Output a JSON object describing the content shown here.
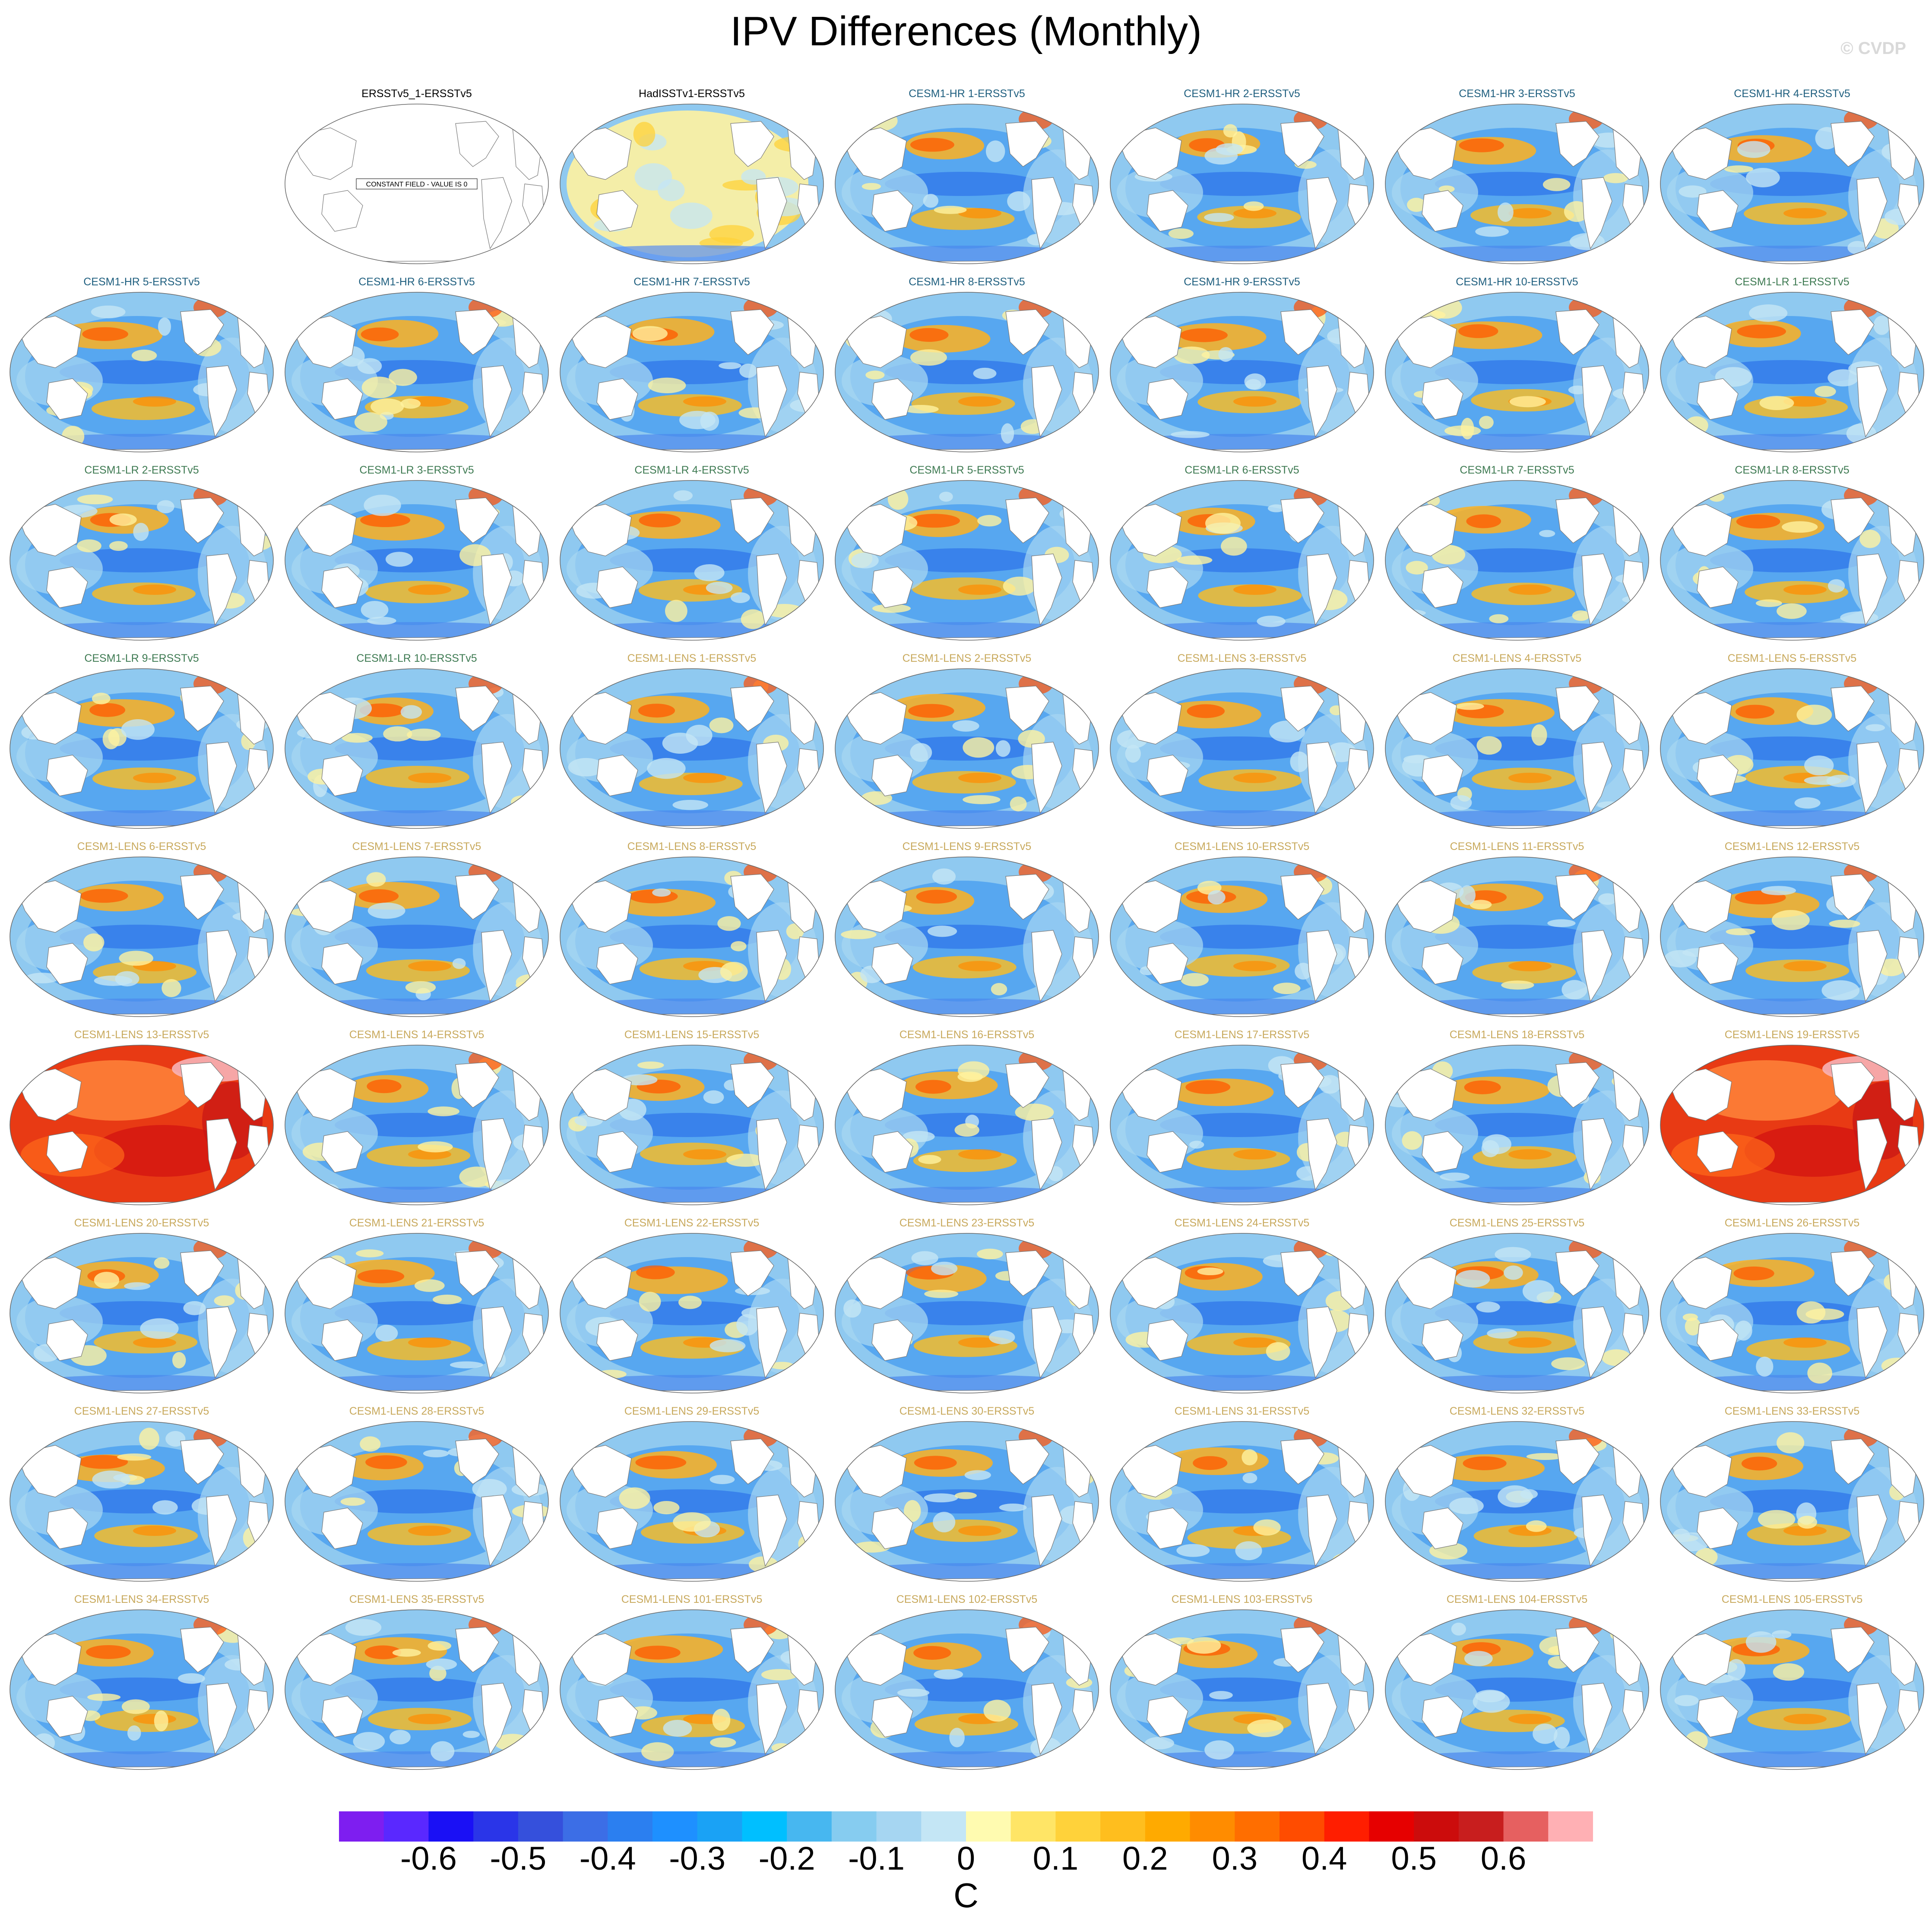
{
  "title": "IPV Differences (Monthly)",
  "watermark": "© CVDP",
  "colors": {
    "obs_label": "#000000",
    "hr_label": "#1f5f7f",
    "lr_label": "#3e7a52",
    "lens_label": "#c8a95c"
  },
  "panels": [
    {
      "label": "",
      "group": "empty"
    },
    {
      "label": "ERSSTv5_1-ERSSTv5",
      "group": "obs",
      "note": "CONSTANT FIELD - VALUE IS 0"
    },
    {
      "label": "HadISSTv1-ERSSTv5",
      "group": "obs"
    },
    {
      "label": "CESM1-HR 1-ERSSTv5",
      "group": "hr"
    },
    {
      "label": "CESM1-HR 2-ERSSTv5",
      "group": "hr"
    },
    {
      "label": "CESM1-HR 3-ERSSTv5",
      "group": "hr"
    },
    {
      "label": "CESM1-HR 4-ERSSTv5",
      "group": "hr"
    },
    {
      "label": "CESM1-HR 5-ERSSTv5",
      "group": "hr"
    },
    {
      "label": "CESM1-HR 6-ERSSTv5",
      "group": "hr"
    },
    {
      "label": "CESM1-HR 7-ERSSTv5",
      "group": "hr"
    },
    {
      "label": "CESM1-HR 8-ERSSTv5",
      "group": "hr"
    },
    {
      "label": "CESM1-HR 9-ERSSTv5",
      "group": "hr"
    },
    {
      "label": "CESM1-HR 10-ERSSTv5",
      "group": "hr"
    },
    {
      "label": "CESM1-LR 1-ERSSTv5",
      "group": "lr"
    },
    {
      "label": "CESM1-LR 2-ERSSTv5",
      "group": "lr"
    },
    {
      "label": "CESM1-LR 3-ERSSTv5",
      "group": "lr"
    },
    {
      "label": "CESM1-LR 4-ERSSTv5",
      "group": "lr"
    },
    {
      "label": "CESM1-LR 5-ERSSTv5",
      "group": "lr"
    },
    {
      "label": "CESM1-LR 6-ERSSTv5",
      "group": "lr"
    },
    {
      "label": "CESM1-LR 7-ERSSTv5",
      "group": "lr"
    },
    {
      "label": "CESM1-LR 8-ERSSTv5",
      "group": "lr"
    },
    {
      "label": "CESM1-LR 9-ERSSTv5",
      "group": "lr"
    },
    {
      "label": "CESM1-LR 10-ERSSTv5",
      "group": "lr"
    },
    {
      "label": "CESM1-LENS 1-ERSSTv5",
      "group": "lens"
    },
    {
      "label": "CESM1-LENS 2-ERSSTv5",
      "group": "lens"
    },
    {
      "label": "CESM1-LENS 3-ERSSTv5",
      "group": "lens"
    },
    {
      "label": "CESM1-LENS 4-ERSSTv5",
      "group": "lens"
    },
    {
      "label": "CESM1-LENS 5-ERSSTv5",
      "group": "lens"
    },
    {
      "label": "CESM1-LENS 6-ERSSTv5",
      "group": "lens"
    },
    {
      "label": "CESM1-LENS 7-ERSSTv5",
      "group": "lens"
    },
    {
      "label": "CESM1-LENS 8-ERSSTv5",
      "group": "lens"
    },
    {
      "label": "CESM1-LENS 9-ERSSTv5",
      "group": "lens"
    },
    {
      "label": "CESM1-LENS 10-ERSSTv5",
      "group": "lens"
    },
    {
      "label": "CESM1-LENS 11-ERSSTv5",
      "group": "lens"
    },
    {
      "label": "CESM1-LENS 12-ERSSTv5",
      "group": "lens"
    },
    {
      "label": "CESM1-LENS 13-ERSSTv5",
      "group": "lens",
      "style": "warm"
    },
    {
      "label": "CESM1-LENS 14-ERSSTv5",
      "group": "lens"
    },
    {
      "label": "CESM1-LENS 15-ERSSTv5",
      "group": "lens"
    },
    {
      "label": "CESM1-LENS 16-ERSSTv5",
      "group": "lens"
    },
    {
      "label": "CESM1-LENS 17-ERSSTv5",
      "group": "lens"
    },
    {
      "label": "CESM1-LENS 18-ERSSTv5",
      "group": "lens"
    },
    {
      "label": "CESM1-LENS 19-ERSSTv5",
      "group": "lens",
      "style": "warm"
    },
    {
      "label": "CESM1-LENS 20-ERSSTv5",
      "group": "lens"
    },
    {
      "label": "CESM1-LENS 21-ERSSTv5",
      "group": "lens"
    },
    {
      "label": "CESM1-LENS 22-ERSSTv5",
      "group": "lens"
    },
    {
      "label": "CESM1-LENS 23-ERSSTv5",
      "group": "lens"
    },
    {
      "label": "CESM1-LENS 24-ERSSTv5",
      "group": "lens"
    },
    {
      "label": "CESM1-LENS 25-ERSSTv5",
      "group": "lens"
    },
    {
      "label": "CESM1-LENS 26-ERSSTv5",
      "group": "lens"
    },
    {
      "label": "CESM1-LENS 27-ERSSTv5",
      "group": "lens"
    },
    {
      "label": "CESM1-LENS 28-ERSSTv5",
      "group": "lens"
    },
    {
      "label": "CESM1-LENS 29-ERSSTv5",
      "group": "lens"
    },
    {
      "label": "CESM1-LENS 30-ERSSTv5",
      "group": "lens"
    },
    {
      "label": "CESM1-LENS 31-ERSSTv5",
      "group": "lens"
    },
    {
      "label": "CESM1-LENS 32-ERSSTv5",
      "group": "lens"
    },
    {
      "label": "CESM1-LENS 33-ERSSTv5",
      "group": "lens"
    },
    {
      "label": "CESM1-LENS 34-ERSSTv5",
      "group": "lens"
    },
    {
      "label": "CESM1-LENS 35-ERSSTv5",
      "group": "lens"
    },
    {
      "label": "CESM1-LENS 101-ERSSTv5",
      "group": "lens"
    },
    {
      "label": "CESM1-LENS 102-ERSSTv5",
      "group": "lens"
    },
    {
      "label": "CESM1-LENS 103-ERSSTv5",
      "group": "lens"
    },
    {
      "label": "CESM1-LENS 104-ERSSTv5",
      "group": "lens"
    },
    {
      "label": "CESM1-LENS 105-ERSSTv5",
      "group": "lens"
    }
  ],
  "colorbar": {
    "units": "C",
    "colors": [
      "#7e1ef0",
      "#5a28ff",
      "#1a10f5",
      "#2a35e8",
      "#3550dc",
      "#3c6ee6",
      "#2b7ff0",
      "#1e90ff",
      "#1aa2f5",
      "#00bfff",
      "#47b7f0",
      "#86ccf0",
      "#a6d6f2",
      "#c4e6f5",
      "#fffbb0",
      "#ffe566",
      "#ffd23a",
      "#ffbe1e",
      "#ffaa00",
      "#ff8c00",
      "#ff6e00",
      "#ff4c00",
      "#ff1e00",
      "#e60000",
      "#cc0c0c",
      "#c81e1e",
      "#e66060",
      "#ffb0b4"
    ],
    "ticks": [
      "-0.6",
      "-0.5",
      "-0.4",
      "-0.3",
      "-0.2",
      "-0.1",
      "0",
      "0.1",
      "0.2",
      "0.3",
      "0.4",
      "0.5",
      "0.6"
    ]
  }
}
